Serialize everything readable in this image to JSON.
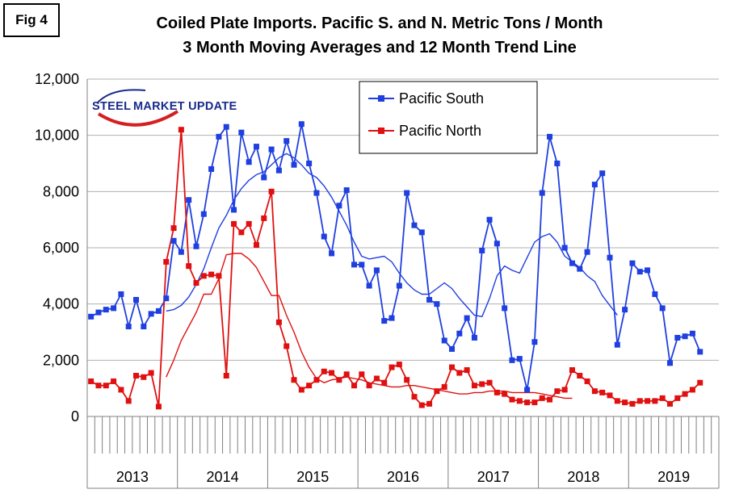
{
  "figure_label": "Fig 4",
  "title_line1": "Coiled Plate Imports. Pacific S. and N. Metric Tons / Month",
  "title_line2": "3 Month Moving Averages and 12 Month Trend Line",
  "logo": {
    "word1": "STEEL",
    "word2": "MARKET UPDATE"
  },
  "colors": {
    "south": "#1f3fe0",
    "north": "#e01010",
    "grid": "#b0b0b0"
  },
  "chart_data": {
    "type": "line",
    "ylim": [
      0,
      12000
    ],
    "yticks": [
      0,
      2000,
      4000,
      6000,
      8000,
      10000,
      12000
    ],
    "ytick_labels": [
      "0",
      "2,000",
      "4,000",
      "6,000",
      "8,000",
      "10,000",
      "12,000"
    ],
    "year_labels": [
      "2013",
      "2014",
      "2015",
      "2016",
      "2017",
      "2018",
      "2019"
    ],
    "months_per_year": 12,
    "num_months": 84,
    "legend_position": "top-center",
    "grid": true,
    "series": [
      {
        "name": "Pacific South",
        "color_key": "south",
        "marker": "square",
        "values": [
          3550,
          3700,
          3800,
          3850,
          4350,
          3200,
          4150,
          3200,
          3650,
          3750,
          4200,
          6250,
          5850,
          7700,
          6050,
          7200,
          8800,
          9950,
          10300,
          7350,
          10100,
          9050,
          9600,
          8500,
          9500,
          8750,
          9800,
          8950,
          10400,
          9000,
          7950,
          6400,
          5800,
          7500,
          8050,
          5400,
          5400,
          4650,
          5200,
          3400,
          3500,
          4650,
          7950,
          6800,
          6550,
          4150,
          4000,
          2700,
          2400,
          2950,
          3500,
          2800,
          5900,
          7000,
          6150,
          3850,
          2000,
          2050,
          950,
          2650,
          7950,
          9950,
          9000,
          6000,
          5450,
          5250,
          5850,
          8250,
          8650,
          5650,
          2550,
          3800,
          5450,
          5150,
          5200,
          4350,
          3850,
          1900,
          2800,
          2850,
          2950,
          2300
        ]
      },
      {
        "name": "Pacific North",
        "color_key": "north",
        "marker": "square",
        "values": [
          1250,
          1100,
          1100,
          1250,
          950,
          550,
          1450,
          1400,
          1550,
          350,
          5500,
          6700,
          10200,
          5350,
          4750,
          5000,
          5050,
          5000,
          1450,
          6850,
          6550,
          6850,
          6100,
          7050,
          8000,
          3350,
          2500,
          1300,
          950,
          1100,
          1300,
          1600,
          1550,
          1300,
          1500,
          1100,
          1500,
          1100,
          1350,
          1200,
          1750,
          1850,
          1300,
          700,
          400,
          450,
          900,
          1050,
          1750,
          1550,
          1650,
          1100,
          1150,
          1200,
          850,
          800,
          600,
          550,
          500,
          500,
          650,
          600,
          900,
          950,
          1650,
          1450,
          1250,
          900,
          850,
          750,
          550,
          500,
          450,
          550,
          550,
          550,
          650,
          450,
          650,
          800,
          950,
          1200
        ]
      },
      {
        "name": "",
        "color_key": "south",
        "marker": "none",
        "values": [
          null,
          null,
          null,
          null,
          null,
          null,
          null,
          null,
          null,
          null,
          3750,
          3800,
          3950,
          4250,
          4700,
          5250,
          6000,
          6700,
          7150,
          7700,
          8100,
          8400,
          8600,
          8700,
          8950,
          9200,
          9350,
          9200,
          8950,
          8650,
          8500,
          8200,
          7800,
          7300,
          6800,
          6200,
          5700,
          5600,
          5650,
          5700,
          5500,
          5100,
          4750,
          4500,
          4350,
          4350,
          4550,
          4750,
          4550,
          4200,
          3900,
          3600,
          3550,
          4200,
          5000,
          5350,
          5200,
          5100,
          5650,
          6200,
          6400,
          6500,
          6200,
          5700,
          5500,
          5300,
          5000,
          4800,
          4300,
          3950,
          3600
        ]
      },
      {
        "name": "",
        "color_key": "north",
        "marker": "none",
        "values": [
          null,
          null,
          null,
          null,
          null,
          null,
          null,
          null,
          null,
          null,
          1400,
          2000,
          2700,
          3200,
          3700,
          4350,
          4350,
          4900,
          5750,
          5800,
          5800,
          5600,
          5300,
          4800,
          4300,
          4300,
          3600,
          3000,
          2300,
          1750,
          1350,
          1200,
          1300,
          1350,
          1400,
          1350,
          1300,
          1200,
          1150,
          1100,
          1050,
          1050,
          1100,
          1100,
          1050,
          1000,
          950,
          900,
          850,
          800,
          800,
          850,
          850,
          900,
          900,
          900,
          850,
          850,
          850,
          850,
          800,
          750,
          700,
          650,
          650
        ]
      }
    ]
  }
}
